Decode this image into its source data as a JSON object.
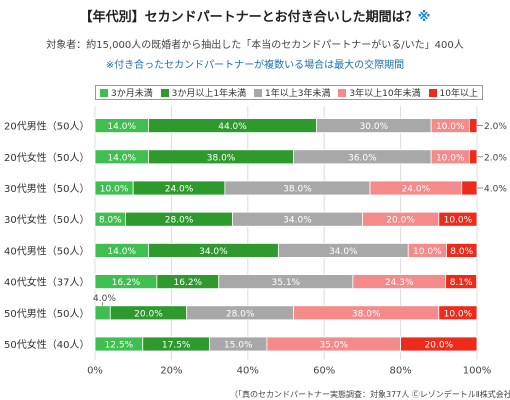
{
  "title": {
    "main": "【年代別】セカンドパートナーとお付き合いした期間は？",
    "mark": "※"
  },
  "subtitle": "対象者：約15,000人の既婚者から抽出した「本当のセカンドパートナーがいる/いた」400人",
  "note": "※付き合ったセカンドパートナーが複数いる場合は最大の交際期間",
  "footer": "（「真のセカンドパートナー実態調査：対象377人 ⒸレゾンデートルⅡ株式会社）",
  "chart_data": {
    "type": "bar",
    "orientation": "horizontal",
    "stacked": true,
    "percent": true,
    "categories": [
      "20代男性（50人）",
      "20代女性（50人）",
      "30代男性（50人）",
      "30代女性（50人）",
      "40代男性（50人）",
      "40代女性（37人）",
      "50代男性（50人）",
      "50代女性（40人）"
    ],
    "series": [
      {
        "name": "3か月未満",
        "color": "#3fbf4f",
        "values": [
          14.0,
          14.0,
          10.0,
          8.0,
          14.0,
          16.2,
          4.0,
          12.5
        ]
      },
      {
        "name": "3か月以上1年未満",
        "color": "#2e9a2e",
        "values": [
          44.0,
          38.0,
          24.0,
          28.0,
          34.0,
          16.2,
          20.0,
          17.5
        ]
      },
      {
        "name": "1年以上3年未満",
        "color": "#a8a8a8",
        "values": [
          30.0,
          36.0,
          38.0,
          34.0,
          34.0,
          35.1,
          28.0,
          15.0
        ]
      },
      {
        "name": "3年以上10年未満",
        "color": "#f48a8a",
        "values": [
          10.0,
          10.0,
          24.0,
          20.0,
          10.0,
          24.3,
          38.0,
          35.0
        ]
      },
      {
        "name": "10年以上",
        "color": "#ee2a1a",
        "values": [
          2.0,
          2.0,
          4.0,
          10.0,
          8.0,
          8.1,
          10.0,
          20.0
        ]
      }
    ],
    "outside_labels": [
      {
        "category": 0,
        "series": 4,
        "text": "2.0%",
        "side": "right"
      },
      {
        "category": 1,
        "series": 4,
        "text": "2.0%",
        "side": "right"
      },
      {
        "category": 2,
        "series": 4,
        "text": "4.0%",
        "side": "right"
      },
      {
        "category": 6,
        "series": 0,
        "text": "4.0%",
        "side": "above"
      }
    ],
    "x_ticks": [
      "0%",
      "20%",
      "40%",
      "60%",
      "80%",
      "100%"
    ],
    "xlim": [
      0,
      100
    ],
    "legend_position": "top",
    "grid": true
  }
}
